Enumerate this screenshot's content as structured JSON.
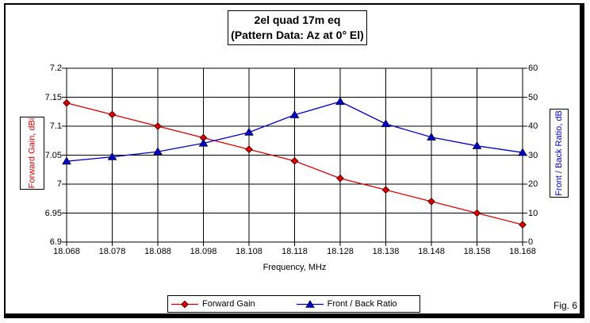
{
  "figure": {
    "caption": "Fig. 6"
  },
  "chart_data": {
    "type": "line",
    "title": "2el quad 17m eq",
    "subtitle": "(Pattern Data: Az at 0° El)",
    "xlabel": "Frequency, MHz",
    "grid": true,
    "legend_position": "bottom",
    "x": [
      18.068,
      18.078,
      18.088,
      18.098,
      18.108,
      18.118,
      18.128,
      18.138,
      18.148,
      18.158,
      18.168
    ],
    "x_tick_labels": [
      "18.068",
      "18.078",
      "18.088",
      "18.098",
      "18.108",
      "18.118",
      "18.128",
      "18.138",
      "18.148",
      "18.158",
      "18.168"
    ],
    "axes": {
      "left": {
        "label": "Forward Gain, dBi",
        "min": 6.9,
        "max": 7.2,
        "tick_labels": [
          "7.2",
          "7.15",
          "7.1",
          "7.05",
          "7",
          "6.95",
          "6.9"
        ],
        "color": "#dd0000"
      },
      "right": {
        "label": "Front / Back Ratio, dB",
        "min": 0,
        "max": 60,
        "tick_labels": [
          "60",
          "50",
          "40",
          "30",
          "20",
          "10",
          "0"
        ],
        "color": "#0000cc"
      }
    },
    "series": [
      {
        "name": "Forward Gain",
        "axis": "left",
        "marker": "diamond",
        "color": "#dd0000",
        "marker_stroke": "#550000",
        "values": [
          7.14,
          7.12,
          7.1,
          7.08,
          7.06,
          7.04,
          7.01,
          6.99,
          6.97,
          6.95,
          6.93
        ]
      },
      {
        "name": "Front / Back Ratio",
        "axis": "right",
        "marker": "triangle",
        "color": "#0000cc",
        "marker_stroke": "#000050",
        "values": [
          27.9,
          29.4,
          31.2,
          34.1,
          37.9,
          43.9,
          48.5,
          40.8,
          36.2,
          33.2,
          30.9
        ]
      }
    ],
    "grid_color": "#000000"
  }
}
